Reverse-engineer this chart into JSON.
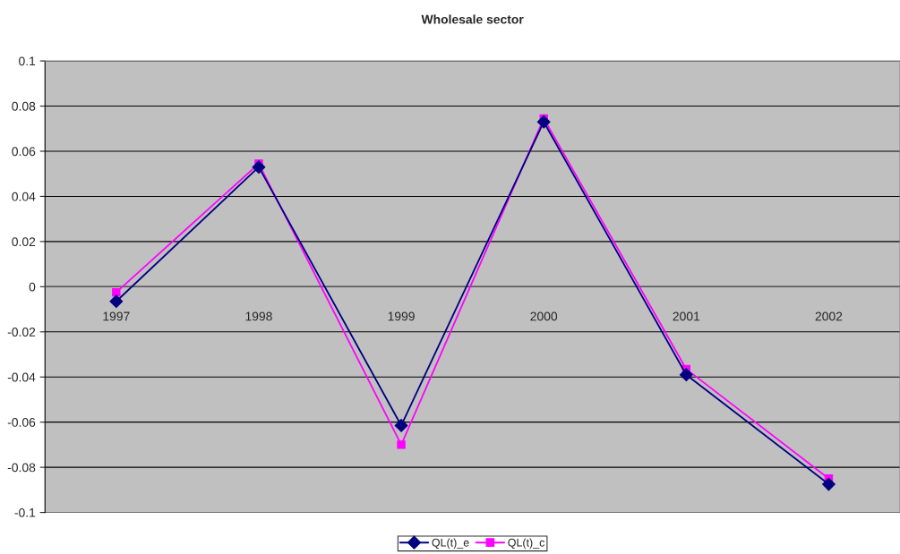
{
  "chart_data": {
    "type": "line",
    "title": "Wholesale sector",
    "categories": [
      "1997",
      "1998",
      "1999",
      "2000",
      "2001",
      "2002"
    ],
    "series": [
      {
        "name": "QL(t)_e",
        "color": "#000080",
        "marker": "diamond",
        "values": [
          -0.0065,
          0.053,
          -0.0615,
          0.073,
          -0.039,
          -0.0875
        ]
      },
      {
        "name": "QL(t)_c",
        "color": "#ff00ff",
        "marker": "square",
        "values": [
          -0.0025,
          0.0545,
          -0.07,
          0.0745,
          -0.0365,
          -0.085
        ]
      }
    ],
    "ylim": [
      -0.1,
      0.1
    ],
    "yticks": [
      -0.1,
      -0.08,
      -0.06,
      -0.04,
      -0.02,
      0,
      0.02,
      0.04,
      0.06,
      0.08,
      0.1
    ],
    "grid": "y",
    "legend": "bottom"
  }
}
